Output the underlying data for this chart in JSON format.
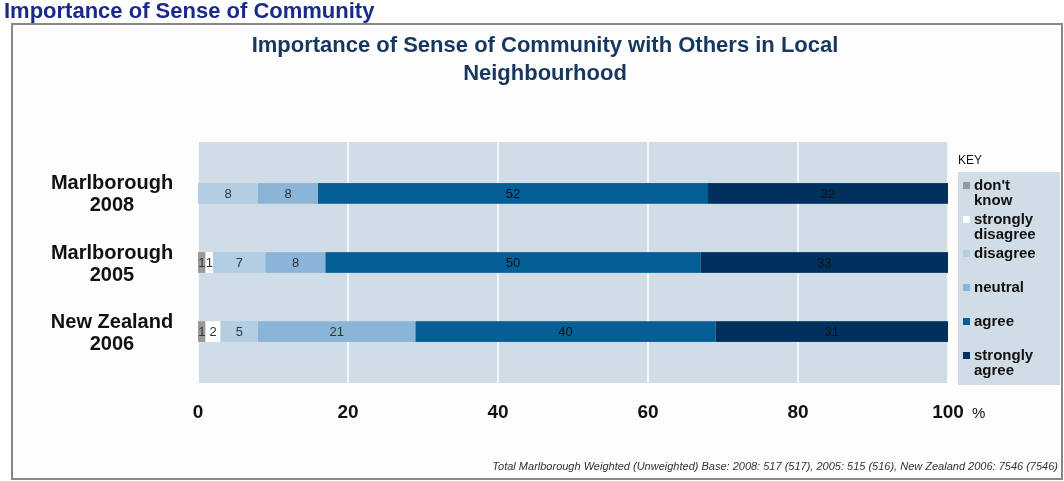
{
  "chart_data": {
    "type": "bar",
    "orientation": "horizontal",
    "stacked": true,
    "title": "Importance of Sense of Community with Others in Local Neighbourhood",
    "xlabel": "%",
    "legend_title": "KEY",
    "legend": "right",
    "grid": "x",
    "data_labels": true,
    "categories": [
      "Marlborough 2008",
      "Marlborough 2005",
      "New Zealand 2006"
    ],
    "series": [
      {
        "name": "don't know",
        "color": "#999999",
        "values": [
          null,
          1,
          1
        ]
      },
      {
        "name": "strongly disagree",
        "color": "#ffffff",
        "values": [
          null,
          1,
          2
        ]
      },
      {
        "name": "disagree",
        "color": "#b3cde3",
        "values": [
          8,
          7,
          5
        ]
      },
      {
        "name": "neutral",
        "color": "#8ab4d8",
        "values": [
          8,
          8,
          21
        ]
      },
      {
        "name": "agree",
        "color": "#055e94",
        "values": [
          52,
          50,
          40
        ]
      },
      {
        "name": "strongly agree",
        "color": "#00305e",
        "values": [
          32,
          33,
          31
        ]
      }
    ],
    "xlim": [
      0,
      100
    ],
    "xticks": [
      0,
      20,
      40,
      60,
      80,
      100
    ],
    "annotations": [
      "Importance of Sense of Community",
      "Total Marlborough Weighted (Unweighted) Base: 2008: 517 (517), 2005: 515 (516), New Zealand 2006: 7546 (7546)"
    ]
  }
}
